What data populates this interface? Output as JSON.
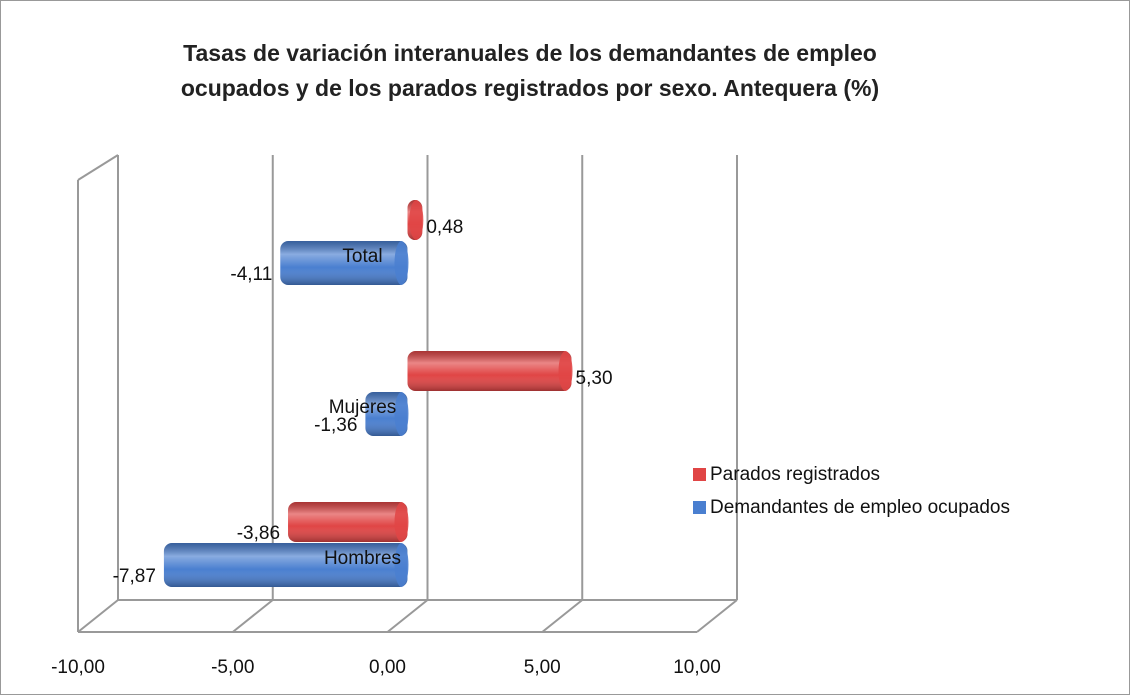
{
  "chart_data": {
    "type": "bar3d_horizontal",
    "title": "Tasas de variación interanuales de los demandantes de empleo ocupados y de los parados registrados por sexo. Antequera (%)",
    "categories": [
      "Total",
      "Mujeres",
      "Hombres"
    ],
    "series": [
      {
        "name": "Parados registrados",
        "color": "#e04545",
        "values": [
          0.48,
          5.3,
          -3.86
        ],
        "value_labels": [
          "0,48",
          "5,30",
          "-3,86"
        ]
      },
      {
        "name": "Demandantes de empleo ocupados",
        "color": "#4a7fd0",
        "values": [
          -4.11,
          -1.36,
          -7.87
        ],
        "value_labels": [
          "-4,11",
          "-1,36",
          "-7,87"
        ]
      }
    ],
    "xlim": [
      -10,
      10
    ],
    "xticks": [
      {
        "value": -10,
        "label": "-10,00"
      },
      {
        "value": -5,
        "label": "-5,00"
      },
      {
        "value": 0,
        "label": "0,00"
      },
      {
        "value": 5,
        "label": "5,00"
      },
      {
        "value": 10,
        "label": "10,00"
      }
    ],
    "grid": true,
    "legend": "right"
  }
}
